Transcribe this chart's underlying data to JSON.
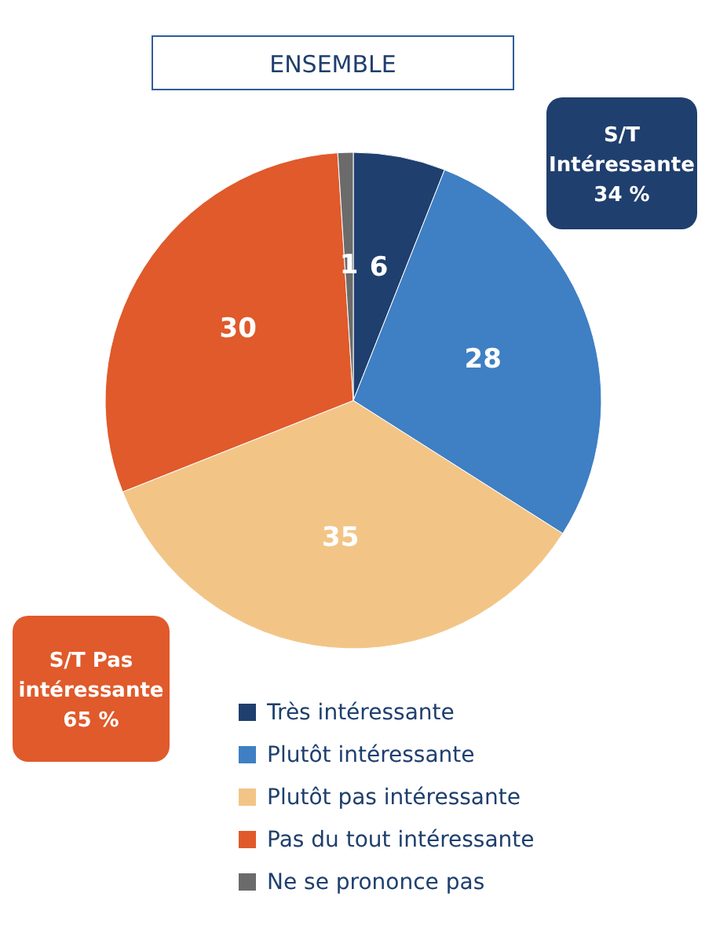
{
  "chart_data": {
    "type": "pie",
    "title": "ENSEMBLE",
    "categories": [
      "Très intéressante",
      "Plutôt intéressante",
      "Plutôt pas intéressante",
      "Pas du tout intéressante",
      "Ne se prononce pas"
    ],
    "values": [
      6,
      28,
      35,
      30,
      1
    ],
    "colors": [
      "#1f3f6e",
      "#3f7fc4",
      "#f2c587",
      "#e05a2b",
      "#6b6b6b"
    ],
    "data_labels": true,
    "legend": "bottom",
    "annotations": [
      "S/T Intéressante 34 %",
      "S/T Pas intéressante 65 %"
    ]
  }
}
